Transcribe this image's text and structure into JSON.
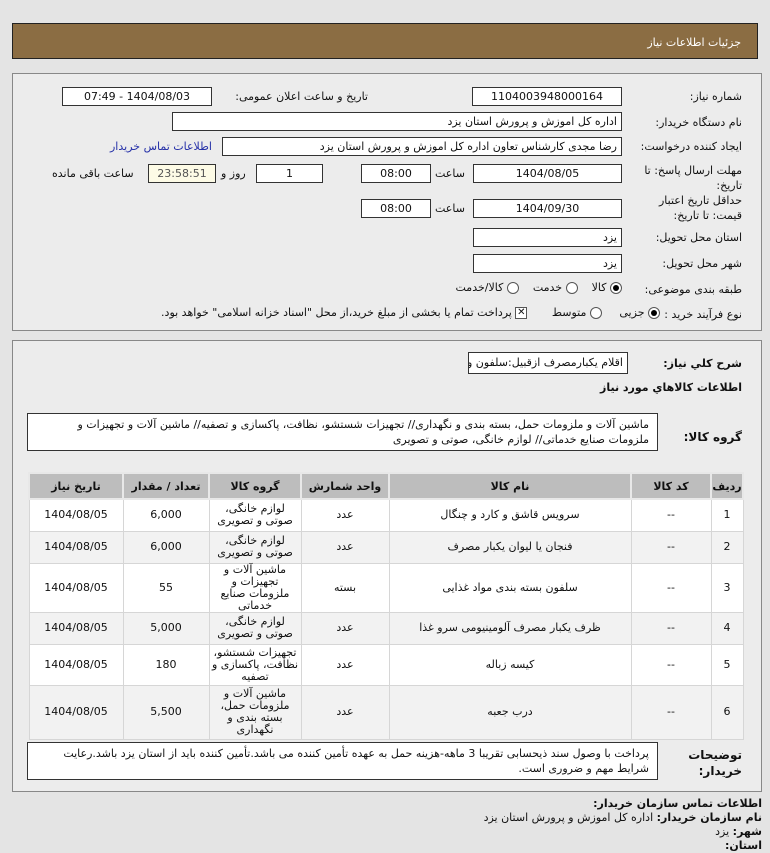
{
  "header": {
    "title": "جزئیات اطلاعات نیاز"
  },
  "details": {
    "need_number_label": "شماره نیاز:",
    "need_number": "1104003948000164",
    "announce_label": "تاریخ و ساعت اعلان عمومی:",
    "announce_value": "1404/08/03 - 07:49",
    "buyer_org_label": "نام دستگاه خریدار:",
    "buyer_org": "اداره کل اموزش و پرورش استان یزد",
    "creator_label": "ایجاد کننده درخواست:",
    "creator": "رضا مجدی کارشناس تعاون اداره کل اموزش و پرورش استان یزد",
    "contact_link": "اطلاعات تماس خریدار",
    "deadline_label": "مهلت ارسال پاسخ: تا تاریخ:",
    "deadline_date": "1404/08/05",
    "time_label": "ساعت",
    "deadline_time": "08:00",
    "days": "1",
    "days_label": "روز و",
    "remaining": "23:58:51",
    "remaining_label": "ساعت باقی مانده",
    "validity_label": "حداقل تاریخ اعتبار قیمت: تا تاریخ:",
    "validity_date": "1404/09/30",
    "validity_time": "08:00",
    "province_label": "استان محل تحویل:",
    "province": "یزد",
    "city_label": "شهر محل تحویل:",
    "city": "یزد",
    "category_label": "طبقه بندی موضوعی:",
    "category_options": [
      "کالا",
      "خدمت",
      "کالا/خدمت"
    ],
    "category_selected": "کالا",
    "process_label": "نوع فرآیند خرید :",
    "process_options": [
      "جزیی",
      "متوسط"
    ],
    "process_selected": "جزیی",
    "payment_note": "پرداخت تمام یا بخشی از مبلغ خرید،از محل \"اسناد خزانه اسلامی\" خواهد بود.",
    "payment_checked": true
  },
  "needs": {
    "summary_label": "شرح کلي نياز:",
    "summary": "اقلام یکبارمصرف ازقبیل:سلفون و...",
    "goods_title": "اطلاعات کالاهاي مورد نياز",
    "group_label": "گروه کالا:",
    "group_value": "ماشین آلات و ملزومات حمل، بسته بندی و نگهداری// تجهیزات شستشو، نظافت، پاکسازی و تصفیه// ماشین آلات و تجهیزات و ملزومات صنایع خدماتی// لوازم خانگی، صوتی و تصویری",
    "columns": [
      "ردیف",
      "کد کالا",
      "نام کالا",
      "واحد شمارش",
      "گروه کالا",
      "تعداد / مقدار",
      "تاریخ نیاز"
    ],
    "rows": [
      [
        "1",
        "--",
        "سرویس قاشق و کارد و چنگال",
        "عدد",
        "لوازم خانگی، صوتی و تصویری",
        "6,000",
        "1404/08/05"
      ],
      [
        "2",
        "--",
        "فنجان یا لیوان یکبار مصرف",
        "عدد",
        "لوازم خانگی، صوتی و تصویری",
        "6,000",
        "1404/08/05"
      ],
      [
        "3",
        "--",
        "سلفون بسته بندی مواد غذایی",
        "بسته",
        "ماشین آلات و تجهیزات و ملزومات صنایع خدماتی",
        "55",
        "1404/08/05"
      ],
      [
        "4",
        "--",
        "ظرف یکبار مصرف آلومینیومی سرو غذا",
        "عدد",
        "لوازم خانگی، صوتی و تصویری",
        "5,000",
        "1404/08/05"
      ],
      [
        "5",
        "--",
        "کیسه زباله",
        "عدد",
        "تجهیزات شستشو، نظافت، پاکسازی و تصفیه",
        "180",
        "1404/08/05"
      ],
      [
        "6",
        "--",
        "درب جعبه",
        "عدد",
        "ماشین آلات و ملزومات حمل، بسته بندی و نگهداری",
        "5,500",
        "1404/08/05"
      ]
    ],
    "notes_label": "توضیحات خریدار:",
    "notes": "پرداخت با وصول سند ذیحسابی تقریبا 3 ماهه-هزینه حمل به عهده تأمین کننده می باشد.تأمین کننده باید از استان یزد باشد.رعایت شرایط مهم و ضروری است."
  },
  "contact": {
    "title": "اطلاعات تماس سازمان خریدار:",
    "org_label": "نام سازمان خریدار:",
    "org": "اداره کل اموزش و پرورش استان یزد",
    "city_label": "شهر:",
    "city": "یزد",
    "province_label": "استان:"
  }
}
